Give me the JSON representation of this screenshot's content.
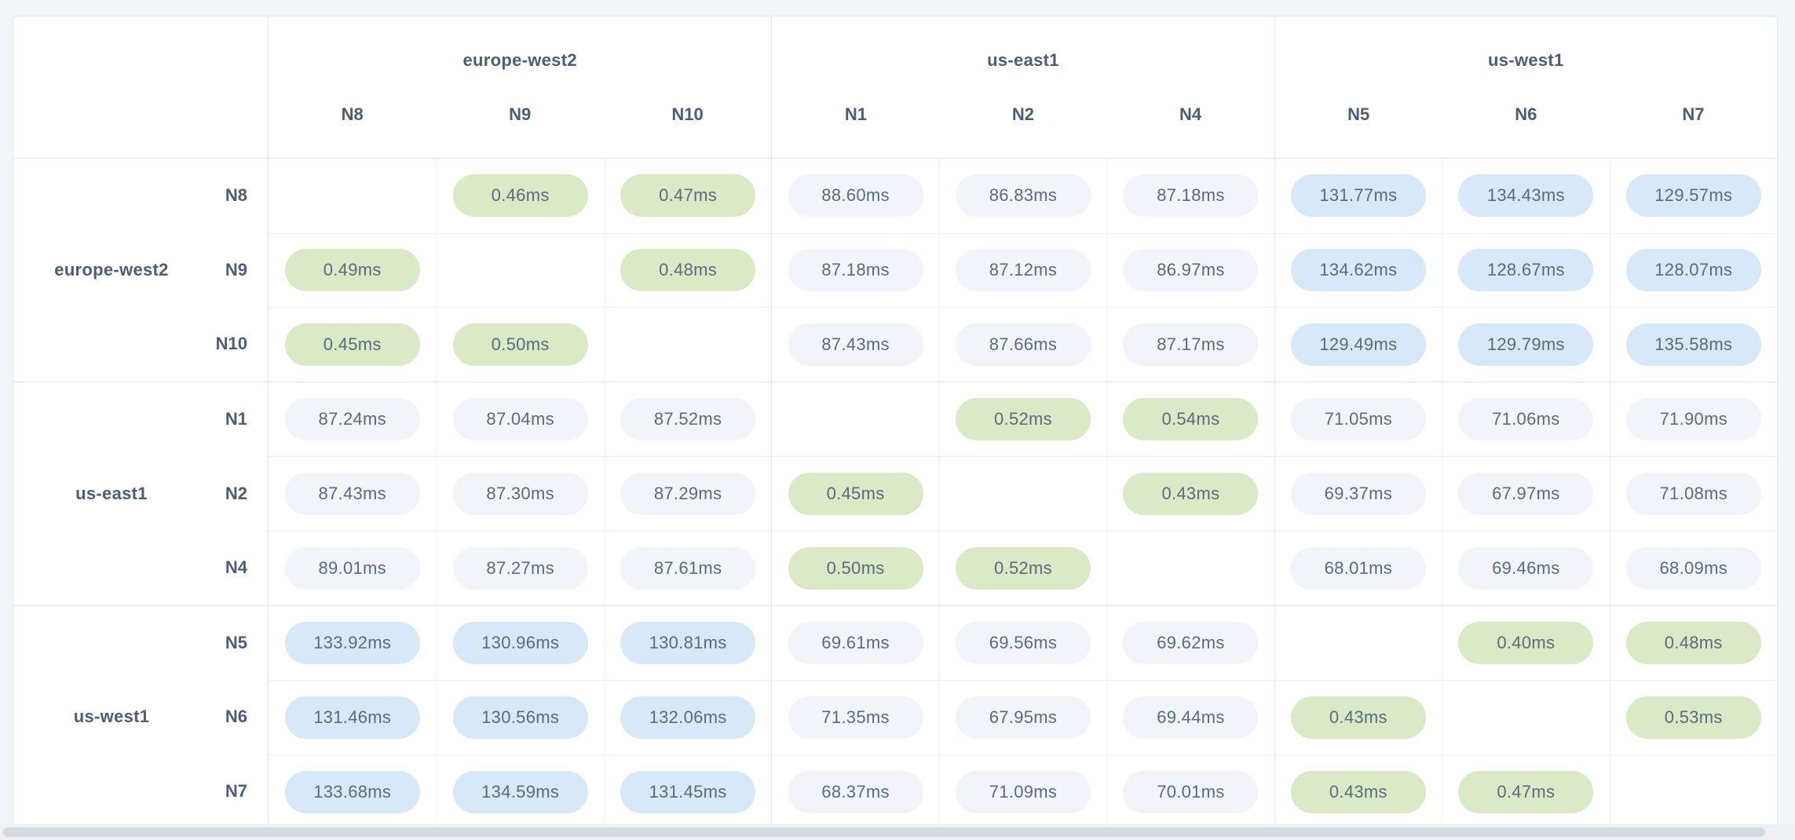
{
  "page": {
    "background": "#f4f5f8",
    "unit": "ms"
  },
  "table": {
    "col_groups": [
      {
        "label": "europe-west2",
        "nodes": [
          "N8",
          "N9",
          "N10"
        ]
      },
      {
        "label": "us-east1",
        "nodes": [
          "N1",
          "N2",
          "N4"
        ]
      },
      {
        "label": "us-west1",
        "nodes": [
          "N5",
          "N6",
          "N7"
        ]
      }
    ],
    "row_groups": [
      {
        "label": "europe-west2",
        "rows": [
          {
            "node": "N8",
            "values": [
              "",
              "0.46ms",
              "0.47ms",
              "88.60ms",
              "86.83ms",
              "87.18ms",
              "131.77ms",
              "134.43ms",
              "129.57ms"
            ]
          },
          {
            "node": "N9",
            "values": [
              "0.49ms",
              "",
              "0.48ms",
              "87.18ms",
              "87.12ms",
              "86.97ms",
              "134.62ms",
              "128.67ms",
              "128.07ms"
            ]
          },
          {
            "node": "N10",
            "values": [
              "0.45ms",
              "0.50ms",
              "",
              "87.43ms",
              "87.66ms",
              "87.17ms",
              "129.49ms",
              "129.79ms",
              "135.58ms"
            ]
          }
        ]
      },
      {
        "label": "us-east1",
        "rows": [
          {
            "node": "N1",
            "values": [
              "87.24ms",
              "87.04ms",
              "87.52ms",
              "",
              "0.52ms",
              "0.54ms",
              "71.05ms",
              "71.06ms",
              "71.90ms"
            ]
          },
          {
            "node": "N2",
            "values": [
              "87.43ms",
              "87.30ms",
              "87.29ms",
              "0.45ms",
              "",
              "0.43ms",
              "69.37ms",
              "67.97ms",
              "71.08ms"
            ]
          },
          {
            "node": "N4",
            "values": [
              "89.01ms",
              "87.27ms",
              "87.61ms",
              "0.50ms",
              "0.52ms",
              "",
              "68.01ms",
              "69.46ms",
              "68.09ms"
            ]
          }
        ]
      },
      {
        "label": "us-west1",
        "rows": [
          {
            "node": "N5",
            "values": [
              "133.92ms",
              "130.96ms",
              "130.81ms",
              "69.61ms",
              "69.56ms",
              "69.62ms",
              "",
              "0.40ms",
              "0.48ms"
            ]
          },
          {
            "node": "N6",
            "values": [
              "131.46ms",
              "130.56ms",
              "132.06ms",
              "71.35ms",
              "67.95ms",
              "69.44ms",
              "0.43ms",
              "",
              "0.53ms"
            ]
          },
          {
            "node": "N7",
            "values": [
              "133.68ms",
              "134.59ms",
              "131.45ms",
              "68.37ms",
              "71.09ms",
              "70.01ms",
              "0.43ms",
              "0.47ms",
              ""
            ]
          }
        ]
      }
    ]
  },
  "style": {
    "low_latency_threshold_ms": 1,
    "high_latency_threshold_ms": 100,
    "colors": {
      "low_bg": "#dbeac6",
      "mid_bg": "#f1f4f8",
      "high_bg": "#d7e8f9",
      "value_text": "#5b6a7e",
      "header_text": "#4d5d75"
    }
  }
}
